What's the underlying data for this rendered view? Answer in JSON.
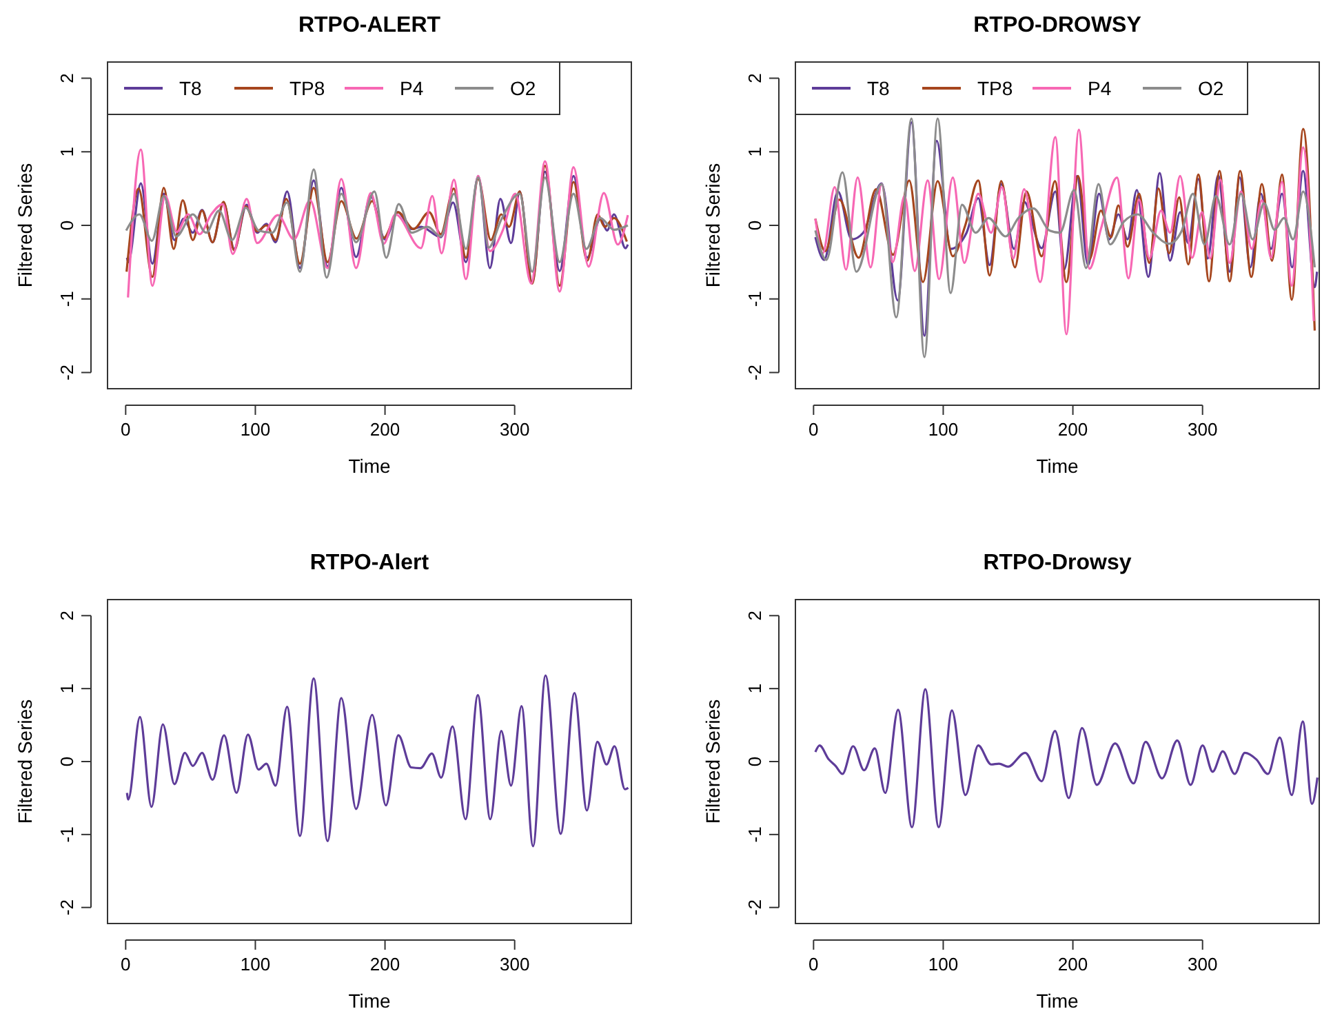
{
  "chart_data": [
    {
      "type": "line",
      "title": "RTPO-ALERT",
      "xlabel": "Time",
      "ylabel": "Filtered Series",
      "xlim": [
        -14,
        390
      ],
      "xticks": [
        0,
        100,
        200,
        300
      ],
      "ylim": [
        -2.22,
        2.22
      ],
      "yticks": [
        -2,
        -1,
        0,
        1,
        2
      ],
      "legend": "top left",
      "series": [
        {
          "name": "T8",
          "color": "#5e3c99",
          "x": [
            1,
            2,
            11.7,
            20.6,
            29.4,
            37.6,
            44.7,
            51.8,
            58.9,
            67,
            75.5,
            83.7,
            93.3,
            101.4,
            108.5,
            115.6,
            124.5,
            134.4,
            145,
            155.7,
            166.3,
            177.7,
            189,
            200,
            209.9,
            220.6,
            227.7,
            243,
            252.5,
            262.4,
            271.9,
            280.9,
            289,
            297.2,
            303.9,
            313.5,
            323.4,
            334.7,
            345.4,
            356,
            366,
            371.3,
            376.6,
            385.5,
            387.3
          ],
          "values": [
            -0.44,
            -0.5,
            0.57,
            -0.52,
            0.43,
            -0.2,
            0.09,
            -0.1,
            0.21,
            -0.23,
            0.31,
            -0.32,
            0.28,
            -0.1,
            0.02,
            -0.23,
            0.46,
            -0.58,
            0.61,
            -0.56,
            0.51,
            -0.43,
            0.4,
            -0.19,
            0.18,
            -0.05,
            -0.02,
            -0.16,
            0.31,
            -0.5,
            0.67,
            -0.58,
            0.36,
            -0.24,
            0.46,
            -0.77,
            0.73,
            -0.62,
            0.67,
            -0.44,
            0.09,
            -0.07,
            0.15,
            -0.31,
            -0.26
          ]
        },
        {
          "name": "TP8",
          "color": "#a6461e",
          "x": [
            0.7,
            10,
            20.6,
            29.4,
            37,
            44,
            51.8,
            58.9,
            67,
            75.5,
            83.7,
            92.6,
            101.4,
            108.5,
            115.6,
            123.8,
            134.4,
            145,
            155.7,
            166.3,
            178,
            190.1,
            199,
            210,
            222,
            234,
            243,
            253,
            262.4,
            271.9,
            281.6,
            289.7,
            295.7,
            303.9,
            313.5,
            323.4,
            334.7,
            345.4,
            356,
            364,
            369.4,
            376.6,
            386.5
          ],
          "values": [
            -0.63,
            0.5,
            -0.7,
            0.51,
            -0.32,
            0.34,
            -0.2,
            0.2,
            -0.23,
            0.32,
            -0.34,
            0.26,
            -0.08,
            0,
            -0.2,
            0.36,
            -0.52,
            0.51,
            -0.5,
            0.33,
            -0.18,
            0.33,
            -0.17,
            0.18,
            -0.05,
            0.18,
            -0.12,
            0.5,
            -0.44,
            0.63,
            -0.2,
            0.15,
            -0.02,
            0.46,
            -0.79,
            0.81,
            -0.82,
            0.59,
            -0.48,
            0.15,
            -0.02,
            0.1,
            -0.22
          ]
        },
        {
          "name": "P4",
          "color": "#f768b4",
          "x": [
            1.8,
            11.7,
            20.6,
            30.5,
            39.4,
            48.2,
            57,
            66,
            75,
            82.6,
            93.3,
            101.4,
            117.4,
            129.8,
            142.2,
            155.7,
            166.3,
            177.7,
            189,
            199,
            208,
            227.7,
            236.5,
            243.6,
            253.2,
            262.4,
            271.9,
            280.9,
            290.8,
            300.4,
            312.8,
            323.4,
            334.7,
            345.4,
            357,
            368.8,
            379.5,
            387.3
          ],
          "values": [
            -0.98,
            1.03,
            -0.82,
            0.4,
            -0.09,
            0.15,
            -0.12,
            0.15,
            0.29,
            -0.39,
            0.36,
            -0.24,
            0.14,
            -0.19,
            0.34,
            -0.58,
            0.63,
            -0.58,
            0.44,
            -0.25,
            0.15,
            -0.31,
            0.4,
            -0.38,
            0.62,
            -0.73,
            0.67,
            -0.35,
            -0.07,
            0.43,
            -0.79,
            0.87,
            -0.9,
            0.79,
            -0.56,
            0.44,
            -0.26,
            0.14
          ]
        },
        {
          "name": "O2",
          "color": "#8c8c8c",
          "x": [
            0.4,
            10.6,
            20.2,
            29.4,
            39,
            51.8,
            62,
            72,
            82,
            92.6,
            102.5,
            113,
            124.5,
            134.4,
            145,
            155,
            166.3,
            177.7,
            191.8,
            201,
            210.6,
            220.6,
            232.8,
            243,
            253.2,
            262.4,
            271.9,
            280,
            289.7,
            303.9,
            313.5,
            323.4,
            334.7,
            345.4,
            355.3,
            366,
            376.6,
            387.3
          ],
          "values": [
            -0.07,
            0.15,
            -0.21,
            0.4,
            -0.15,
            0.15,
            -0.1,
            0.2,
            -0.2,
            0.24,
            -0.07,
            -0.1,
            0.31,
            -0.63,
            0.76,
            -0.71,
            0.43,
            -0.23,
            0.46,
            -0.44,
            0.29,
            -0.1,
            -0.02,
            -0.15,
            0.43,
            -0.32,
            0.65,
            -0.3,
            0.08,
            0.43,
            -0.63,
            0.65,
            -0.5,
            0.43,
            -0.32,
            0.1,
            -0.06,
            0
          ]
        }
      ]
    },
    {
      "type": "line",
      "title": "RTPO-DROWSY",
      "xlabel": "Time",
      "ylabel": "Filtered Series",
      "xlim": [
        -14,
        390
      ],
      "xticks": [
        0,
        100,
        200,
        300
      ],
      "ylim": [
        -2.22,
        2.22
      ],
      "yticks": [
        -2,
        -1,
        0,
        1,
        2
      ],
      "legend": "top left",
      "series": [
        {
          "name": "T8",
          "color": "#5e3c99",
          "x": [
            1.4,
            8.2,
            18.8,
            29.4,
            38.3,
            52.5,
            64.9,
            75.5,
            85.5,
            95,
            105.7,
            118,
            127,
            135.8,
            144.7,
            154.6,
            162.4,
            175.9,
            186.5,
            193.3,
            203.2,
            211.7,
            220.2,
            228,
            235.1,
            242.2,
            249.3,
            258.2,
            267,
            274.9,
            282.7,
            289,
            296.8,
            304,
            312,
            320.9,
            328.7,
            336.9,
            345,
            352.8,
            361.3,
            369.1,
            377.6,
            386.5,
            388.3
          ],
          "values": [
            -0.16,
            -0.47,
            0.46,
            -0.19,
            -0.1,
            0.57,
            -1.02,
            1.4,
            -1.5,
            1.15,
            -0.32,
            -0.1,
            0.37,
            -0.54,
            0.56,
            -0.32,
            0.32,
            -0.31,
            0.46,
            -0.6,
            0.67,
            -0.54,
            0.43,
            -0.19,
            0.15,
            -0.19,
            0.48,
            -0.7,
            0.71,
            -0.48,
            0.18,
            -0.24,
            0.63,
            -0.45,
            0.68,
            -0.63,
            0.65,
            -0.57,
            0.43,
            -0.32,
            0.43,
            -0.57,
            0.74,
            -0.84,
            -0.63
          ]
        },
        {
          "name": "TP8",
          "color": "#a6461e",
          "x": [
            1.4,
            9,
            20,
            34.8,
            48.2,
            61.3,
            73.8,
            84.4,
            95.7,
            107.4,
            117,
            127,
            135.8,
            144.7,
            155.3,
            164.2,
            175.9,
            186.2,
            195,
            204,
            212.8,
            221.6,
            229.4,
            235.1,
            242.2,
            251.1,
            258.9,
            266,
            274.2,
            282,
            289,
            296.8,
            305,
            313.1,
            320.9,
            329,
            337.6,
            345.8,
            353.5,
            361.3,
            368.8,
            377.6,
            386.5
          ],
          "values": [
            0.09,
            -0.35,
            0.35,
            -0.44,
            0.49,
            -0.4,
            0.61,
            -0.77,
            0.6,
            -0.42,
            0,
            0.61,
            -0.68,
            0.6,
            -0.57,
            0.46,
            -0.42,
            0.6,
            -0.77,
            0.67,
            -0.46,
            0.2,
            -0.16,
            0.27,
            -0.29,
            0.43,
            -0.51,
            0.5,
            -0.38,
            0.38,
            -0.53,
            0.69,
            -0.76,
            0.74,
            -0.76,
            0.74,
            -0.7,
            0.56,
            -0.48,
            0.69,
            -1.01,
            1.31,
            -1.43
          ]
        },
        {
          "name": "P4",
          "color": "#f768b4",
          "x": [
            1.4,
            7.1,
            16.3,
            25,
            34,
            44,
            52.5,
            61,
            70.2,
            78,
            88,
            96.8,
            107.4,
            116.3,
            127,
            136.9,
            145.4,
            154,
            162.4,
            174.8,
            186.5,
            195,
            204.6,
            212.8,
            221.6,
            234,
            242.9,
            251,
            259,
            268,
            275,
            282.7,
            292,
            299.6,
            306,
            313.8,
            320.9,
            329.7,
            337.9,
            345.8,
            352.8,
            361.3,
            368.8,
            377.6,
            385.8
          ],
          "values": [
            0.09,
            -0.38,
            0.52,
            -0.6,
            0.65,
            -0.57,
            0.56,
            -0.5,
            0.4,
            -0.62,
            0.61,
            -0.73,
            0.65,
            -0.51,
            0.43,
            -0.1,
            0.52,
            -0.45,
            0.49,
            -0.77,
            1.2,
            -1.48,
            1.3,
            -0.59,
            -0.05,
            0.65,
            -0.72,
            0.35,
            -0.45,
            0.2,
            -0.1,
            0.67,
            -0.44,
            0.18,
            -0.45,
            0.62,
            -0.51,
            0.46,
            -0.32,
            0.34,
            -0.44,
            0.59,
            -0.82,
            1.06,
            -1.3
          ]
        },
        {
          "name": "O2",
          "color": "#8c8c8c",
          "x": [
            1.4,
            9.9,
            22.3,
            33,
            52.5,
            63.8,
            75.5,
            85.5,
            95.7,
            105.7,
            114.5,
            125,
            135,
            148,
            158,
            169.5,
            182,
            190,
            201,
            210.2,
            219.8,
            228.7,
            239.3,
            250,
            262,
            274.2,
            283.8,
            292.6,
            301.5,
            310.3,
            320.9,
            329.7,
            338.6,
            347.5,
            355.6,
            362.8,
            369.8,
            377.6,
            386.5
          ],
          "values": [
            -0.07,
            -0.47,
            0.72,
            -0.63,
            0.56,
            -1.25,
            1.45,
            -1.79,
            1.45,
            -0.92,
            0.28,
            -0.1,
            0.1,
            -0.15,
            0.1,
            0.23,
            -0.07,
            -0.1,
            0.48,
            -0.58,
            0.56,
            -0.26,
            0.05,
            0.15,
            -0.1,
            -0.25,
            -0.08,
            0.43,
            -0.26,
            0.4,
            -0.26,
            0.43,
            -0.19,
            0.3,
            -0.06,
            0.1,
            -0.19,
            0.46,
            -0.57
          ]
        }
      ]
    },
    {
      "type": "line",
      "title": "RTPO-Alert",
      "xlabel": "Time",
      "ylabel": "Filtered Series",
      "xlim": [
        -14,
        390
      ],
      "xticks": [
        0,
        100,
        200,
        300
      ],
      "ylim": [
        -2.22,
        2.22
      ],
      "yticks": [
        -2,
        -1,
        0,
        1,
        2
      ],
      "series": [
        {
          "color": "#5e3c99",
          "x": [
            1,
            2,
            11,
            19.9,
            28.7,
            37.6,
            45.7,
            51.8,
            58.9,
            67,
            75.9,
            85.5,
            94.3,
            102.5,
            108.5,
            115.6,
            124.5,
            134.4,
            145,
            155.7,
            166.3,
            177.7,
            190.1,
            200.7,
            210.3,
            220.2,
            227.3,
            236.2,
            243.3,
            252.1,
            262.1,
            271.6,
            281.2,
            289.7,
            297.2,
            305.3,
            314.2,
            323.8,
            335.5,
            346.1,
            355.7,
            363.8,
            370.9,
            377,
            385.1,
            387.6
          ],
          "values": [
            -0.43,
            -0.52,
            0.61,
            -0.62,
            0.51,
            -0.31,
            0.12,
            -0.06,
            0.12,
            -0.25,
            0.36,
            -0.43,
            0.37,
            -0.11,
            -0.03,
            -0.33,
            0.75,
            -1.02,
            1.14,
            -1.09,
            0.87,
            -0.65,
            0.64,
            -0.6,
            0.36,
            -0.08,
            -0.09,
            0.11,
            -0.22,
            0.48,
            -0.79,
            0.91,
            -0.79,
            0.42,
            -0.33,
            0.76,
            -1.16,
            1.18,
            -0.99,
            0.94,
            -0.67,
            0.27,
            -0.04,
            0.21,
            -0.38,
            -0.36
          ]
        }
      ]
    },
    {
      "type": "line",
      "title": "RTPO-Drowsy",
      "xlabel": "Time",
      "ylabel": "Filtered Series",
      "xlim": [
        -14,
        390
      ],
      "xticks": [
        0,
        100,
        200,
        300
      ],
      "ylim": [
        -2.22,
        2.22
      ],
      "yticks": [
        -2,
        -1,
        0,
        1,
        2
      ],
      "series": [
        {
          "color": "#5e3c99",
          "x": [
            1.4,
            4.6,
            11.7,
            17,
            22.3,
            30.5,
            39,
            47.2,
            55.3,
            65.2,
            75.9,
            86.2,
            96.5,
            106.7,
            117.1,
            127,
            137,
            143,
            150,
            163.2,
            175.9,
            186.2,
            196.8,
            207.1,
            218.5,
            232.6,
            246.8,
            256.1,
            268.8,
            280.5,
            290.8,
            300,
            307.8,
            315.6,
            324.8,
            332.6,
            341.5,
            350.4,
            359.6,
            368.8,
            377.3,
            384.4,
            388.6
          ],
          "values": [
            0.13,
            0.22,
            0.03,
            -0.06,
            -0.17,
            0.21,
            -0.12,
            0.18,
            -0.43,
            0.71,
            -0.9,
            0.99,
            -0.9,
            0.7,
            -0.46,
            0.22,
            -0.04,
            -0.03,
            -0.07,
            0.12,
            -0.27,
            0.42,
            -0.5,
            0.46,
            -0.32,
            0.25,
            -0.3,
            0.27,
            -0.23,
            0.29,
            -0.32,
            0.22,
            -0.14,
            0.14,
            -0.17,
            0.12,
            0.03,
            -0.17,
            0.33,
            -0.46,
            0.55,
            -0.58,
            -0.22
          ]
        }
      ]
    }
  ]
}
